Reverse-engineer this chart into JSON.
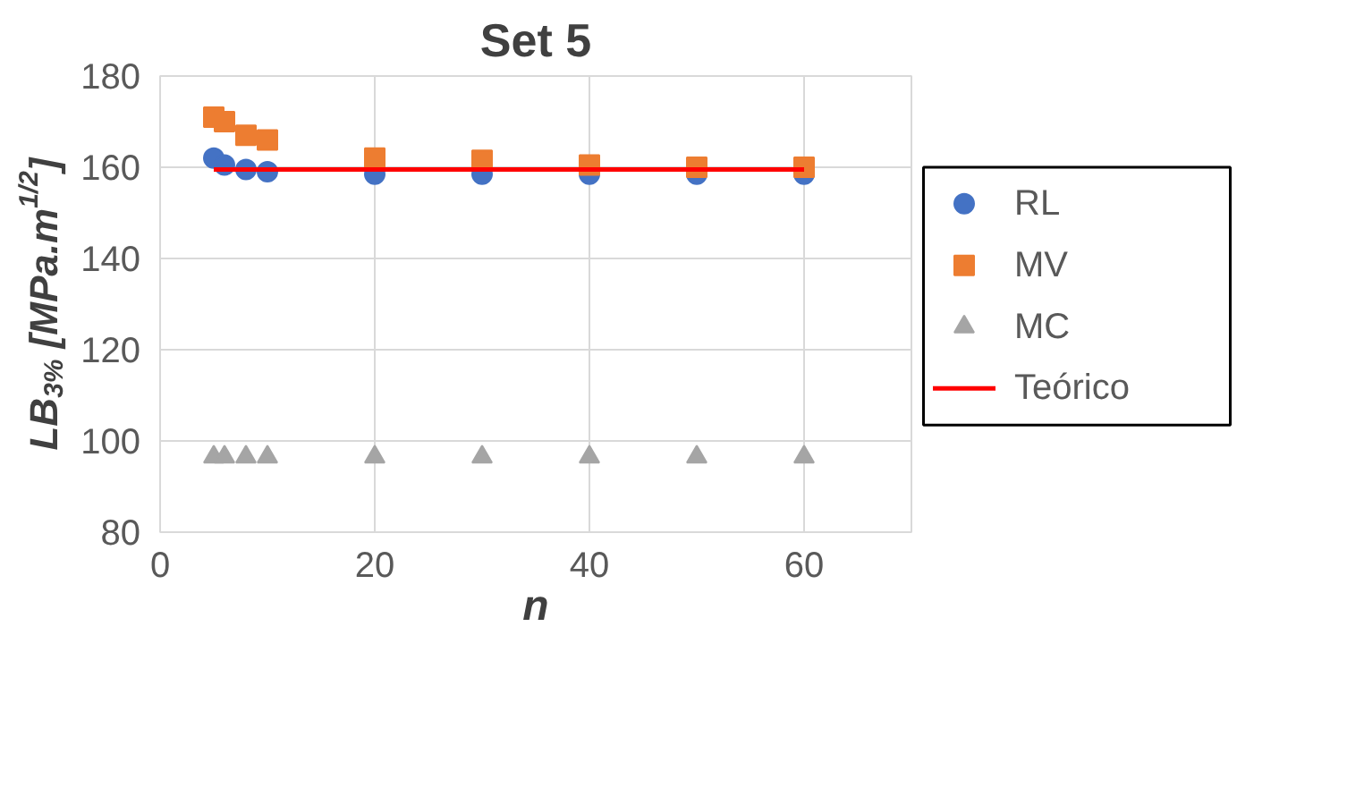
{
  "chart_data": {
    "type": "scatter",
    "title": "Set 5",
    "xlabel": "n",
    "ylabel": "LB$_{3%}$ [MPa.m$^{1/2}$]",
    "x": [
      5,
      6,
      8,
      10,
      20,
      30,
      40,
      50,
      60
    ],
    "series": [
      {
        "name": "RL",
        "color": "#4472c4",
        "marker": "circle",
        "values": [
          162,
          160.5,
          159.5,
          159,
          158.5,
          158.5,
          158.5,
          158.5,
          158.5
        ]
      },
      {
        "name": "MV",
        "color": "#ed7d31",
        "marker": "square",
        "values": [
          171,
          170,
          167,
          166,
          162,
          161.5,
          160.5,
          160,
          160
        ]
      },
      {
        "name": "MC",
        "color": "#a5a5a5",
        "marker": "triangle",
        "values": [
          96.5,
          96.5,
          96.5,
          96.5,
          96.5,
          96.5,
          96.5,
          96.5,
          96.5
        ]
      },
      {
        "name": "Teórico",
        "type": "line",
        "color": "#ff0000",
        "marker": "none",
        "x": [
          5,
          60
        ],
        "values": [
          159.5,
          159.5
        ]
      }
    ],
    "xlim": [
      0,
      70
    ],
    "xticks": [
      0,
      20,
      40,
      60
    ],
    "ylim": [
      80,
      180
    ],
    "yticks": [
      80,
      100,
      120,
      140,
      160,
      180
    ],
    "grid": true,
    "legend": "right"
  }
}
